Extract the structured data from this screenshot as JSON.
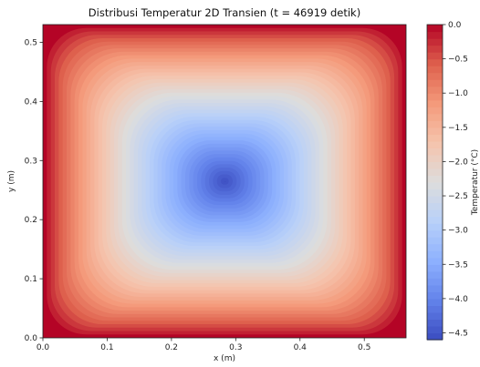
{
  "chart_data": {
    "type": "heatmap",
    "title": "Distribusi Temperatur 2D Transien (t = 46919 detik)",
    "xlabel": "x (m)",
    "ylabel": "y (m)",
    "xlim": [
      0.0,
      0.565
    ],
    "ylim": [
      0.0,
      0.53
    ],
    "x_ticks": [
      "0.0",
      "0.1",
      "0.2",
      "0.3",
      "0.4",
      "0.5"
    ],
    "x_tick_values": [
      0.0,
      0.1,
      0.2,
      0.3,
      0.4,
      0.5
    ],
    "y_ticks": [
      "0.0",
      "0.1",
      "0.2",
      "0.3",
      "0.4",
      "0.5"
    ],
    "y_tick_values": [
      0.0,
      0.1,
      0.2,
      0.3,
      0.4,
      0.5
    ],
    "field": {
      "min_value": -4.6,
      "max_value": 0.0,
      "min_location": [
        0.283,
        0.265
      ],
      "boundary_value": 0.0
    },
    "colormap": {
      "name": "coolwarm",
      "low_color": "#3b4cc0",
      "high_color": "#b40426"
    },
    "colorbar": {
      "label": "Temperatur (°C)",
      "range": [
        -4.6,
        0.0
      ],
      "ticks": [
        "0.0",
        "−0.5",
        "−1.0",
        "−1.5",
        "−2.0",
        "−2.5",
        "−3.0",
        "−3.5",
        "−4.0",
        "−4.5"
      ],
      "tick_values": [
        0.0,
        -0.5,
        -1.0,
        -1.5,
        -2.0,
        -2.5,
        -3.0,
        -3.5,
        -4.0,
        -4.5
      ]
    }
  }
}
